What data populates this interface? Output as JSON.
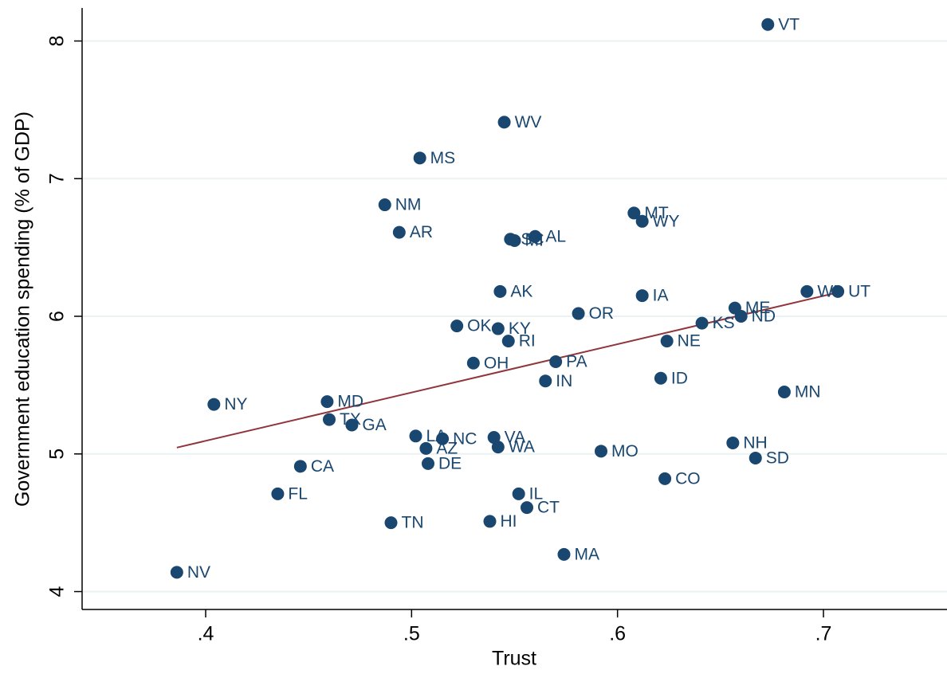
{
  "chart_data": {
    "type": "scatter",
    "x_label": "Trust",
    "y_label": "Government education spending (% of GDP)",
    "color": "#1a476f",
    "labels": [
      "VT",
      "WV",
      "MS",
      "NM",
      "AR",
      "MT",
      "WY",
      "SC",
      "MI",
      "AL",
      "AK",
      "IA",
      "OR",
      "WI",
      "UT",
      "ME",
      "ND",
      "KS",
      "NE",
      "OK",
      "KY",
      "RI",
      "OH",
      "PA",
      "IN",
      "ID",
      "MN",
      "NY",
      "MD",
      "TX",
      "GA",
      "LA",
      "NC",
      "VA",
      "AZ",
      "WA",
      "DE",
      "MO",
      "NH",
      "SD",
      "CO",
      "CA",
      "FL",
      "IL",
      "CT",
      "HI",
      "TN",
      "MA",
      "NV"
    ],
    "x": [
      0.673,
      0.545,
      0.504,
      0.487,
      0.494,
      0.608,
      0.612,
      0.548,
      0.55,
      0.56,
      0.543,
      0.612,
      0.581,
      0.692,
      0.707,
      0.657,
      0.66,
      0.641,
      0.624,
      0.522,
      0.542,
      0.547,
      0.53,
      0.57,
      0.565,
      0.621,
      0.681,
      0.404,
      0.459,
      0.46,
      0.471,
      0.502,
      0.515,
      0.54,
      0.507,
      0.542,
      0.508,
      0.592,
      0.656,
      0.667,
      0.623,
      0.446,
      0.435,
      0.552,
      0.556,
      0.538,
      0.49,
      0.574,
      0.386
    ],
    "values": [
      8.12,
      7.41,
      7.15,
      6.81,
      6.61,
      6.75,
      6.69,
      6.56,
      6.55,
      6.58,
      6.18,
      6.15,
      6.02,
      6.18,
      6.18,
      6.06,
      6.0,
      5.95,
      5.82,
      5.93,
      5.91,
      5.82,
      5.66,
      5.67,
      5.53,
      5.55,
      5.45,
      5.36,
      5.38,
      5.25,
      5.21,
      5.13,
      5.11,
      5.12,
      5.04,
      5.05,
      4.93,
      5.02,
      5.08,
      4.97,
      4.82,
      4.91,
      4.71,
      4.71,
      4.61,
      4.51,
      4.5,
      4.27,
      4.14
    ],
    "fit": {
      "x": [
        0.386,
        0.707
      ],
      "y": [
        5.046,
        6.173
      ],
      "color": "#90353b"
    },
    "xlim": [
      0.34,
      0.76
    ],
    "xticks": [
      {
        "value": 0.4,
        "label": ".4"
      },
      {
        "value": 0.5,
        "label": ".5"
      },
      {
        "value": 0.6,
        "label": ".6"
      },
      {
        "value": 0.7,
        "label": ".7"
      }
    ],
    "ylim": [
      3.87,
      8.24
    ],
    "yticks": [
      4,
      5,
      6,
      7,
      8
    ],
    "grid": true
  }
}
